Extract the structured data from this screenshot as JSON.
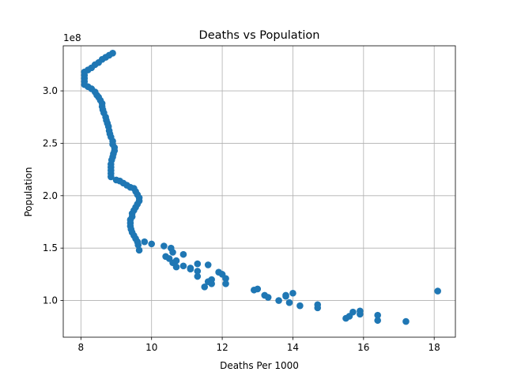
{
  "chart_data": {
    "type": "scatter",
    "title": "Deaths vs Population",
    "xlabel": "Deaths Per 1000",
    "ylabel": "Population",
    "y_offset_text": "1e8",
    "y_scale": 100000000,
    "xlim": [
      7.5,
      18.6
    ],
    "ylim": [
      65000000,
      343000000
    ],
    "grid": true,
    "marker_color": "#1f77b4",
    "x_ticks": [
      8,
      10,
      12,
      14,
      16,
      18
    ],
    "x_tick_labels": [
      "8",
      "10",
      "12",
      "14",
      "16",
      "18"
    ],
    "y_ticks": [
      100000000,
      150000000,
      200000000,
      250000000,
      300000000
    ],
    "y_tick_labels": [
      "1.0",
      "1.5",
      "2.0",
      "2.5",
      "3.0"
    ],
    "series": [
      {
        "points": [
          [
            8.9,
            336000000
          ],
          [
            8.8,
            334000000
          ],
          [
            8.7,
            332000000
          ],
          [
            8.6,
            330000000
          ],
          [
            8.5,
            327000000
          ],
          [
            8.4,
            325000000
          ],
          [
            8.3,
            322000000
          ],
          [
            8.2,
            320000000
          ],
          [
            8.1,
            318000000
          ],
          [
            8.1,
            315000000
          ],
          [
            8.1,
            312000000
          ],
          [
            8.1,
            309000000
          ],
          [
            8.1,
            306000000
          ],
          [
            8.2,
            304000000
          ],
          [
            8.3,
            302000000
          ],
          [
            8.4,
            299000000
          ],
          [
            8.45,
            296000000
          ],
          [
            8.5,
            294000000
          ],
          [
            8.55,
            291000000
          ],
          [
            8.6,
            288000000
          ],
          [
            8.6,
            285000000
          ],
          [
            8.62,
            282000000
          ],
          [
            8.65,
            279000000
          ],
          [
            8.7,
            275000000
          ],
          [
            8.72,
            272000000
          ],
          [
            8.75,
            269000000
          ],
          [
            8.78,
            266000000
          ],
          [
            8.8,
            262000000
          ],
          [
            8.82,
            259000000
          ],
          [
            8.85,
            256000000
          ],
          [
            8.9,
            252000000
          ],
          [
            8.9,
            249000000
          ],
          [
            8.95,
            246000000
          ],
          [
            8.95,
            243000000
          ],
          [
            8.92,
            240000000
          ],
          [
            8.9,
            237000000
          ],
          [
            8.87,
            234000000
          ],
          [
            8.85,
            230000000
          ],
          [
            8.85,
            227000000
          ],
          [
            8.85,
            224000000
          ],
          [
            8.85,
            221000000
          ],
          [
            8.85,
            218000000
          ],
          [
            9.0,
            215000000
          ],
          [
            9.1,
            214000000
          ],
          [
            9.2,
            212000000
          ],
          [
            9.3,
            210000000
          ],
          [
            9.4,
            208000000
          ],
          [
            9.5,
            207000000
          ],
          [
            9.55,
            204000000
          ],
          [
            9.6,
            201000000
          ],
          [
            9.65,
            198000000
          ],
          [
            9.65,
            195000000
          ],
          [
            9.6,
            192000000
          ],
          [
            9.55,
            189000000
          ],
          [
            9.5,
            186000000
          ],
          [
            9.45,
            183000000
          ],
          [
            9.45,
            180000000
          ],
          [
            9.4,
            177000000
          ],
          [
            9.4,
            174000000
          ],
          [
            9.4,
            171000000
          ],
          [
            9.42,
            168000000
          ],
          [
            9.45,
            165000000
          ],
          [
            9.5,
            162000000
          ],
          [
            9.55,
            159000000
          ],
          [
            9.6,
            156000000
          ],
          [
            9.62,
            153000000
          ],
          [
            9.65,
            148000000
          ],
          [
            9.8,
            156000000
          ],
          [
            10.0,
            154000000
          ],
          [
            10.35,
            152000000
          ],
          [
            10.55,
            150000000
          ],
          [
            10.6,
            146000000
          ],
          [
            10.4,
            142000000
          ],
          [
            10.5,
            140000000
          ],
          [
            10.7,
            138000000
          ],
          [
            10.9,
            144000000
          ],
          [
            10.6,
            136000000
          ],
          [
            10.7,
            132000000
          ],
          [
            10.9,
            133000000
          ],
          [
            11.1,
            131000000
          ],
          [
            11.1,
            130000000
          ],
          [
            11.3,
            135000000
          ],
          [
            11.3,
            128000000
          ],
          [
            11.3,
            123000000
          ],
          [
            11.6,
            134000000
          ],
          [
            11.7,
            120000000
          ],
          [
            11.6,
            118000000
          ],
          [
            11.7,
            116000000
          ],
          [
            11.5,
            113000000
          ],
          [
            11.9,
            127000000
          ],
          [
            12.0,
            125000000
          ],
          [
            12.1,
            121000000
          ],
          [
            12.1,
            116000000
          ],
          [
            12.9,
            110000000
          ],
          [
            13.0,
            111000000
          ],
          [
            13.2,
            105000000
          ],
          [
            13.3,
            103000000
          ],
          [
            13.6,
            100000000
          ],
          [
            13.8,
            104000000
          ],
          [
            13.8,
            105000000
          ],
          [
            13.9,
            98000000
          ],
          [
            14.0,
            107000000
          ],
          [
            14.2,
            95000000
          ],
          [
            14.7,
            96000000
          ],
          [
            14.7,
            93000000
          ],
          [
            15.5,
            83000000
          ],
          [
            15.6,
            85000000
          ],
          [
            15.7,
            89000000
          ],
          [
            15.9,
            90000000
          ],
          [
            15.9,
            87000000
          ],
          [
            16.4,
            86000000
          ],
          [
            16.4,
            81000000
          ],
          [
            17.2,
            80000000
          ],
          [
            18.1,
            109000000
          ]
        ]
      }
    ]
  }
}
